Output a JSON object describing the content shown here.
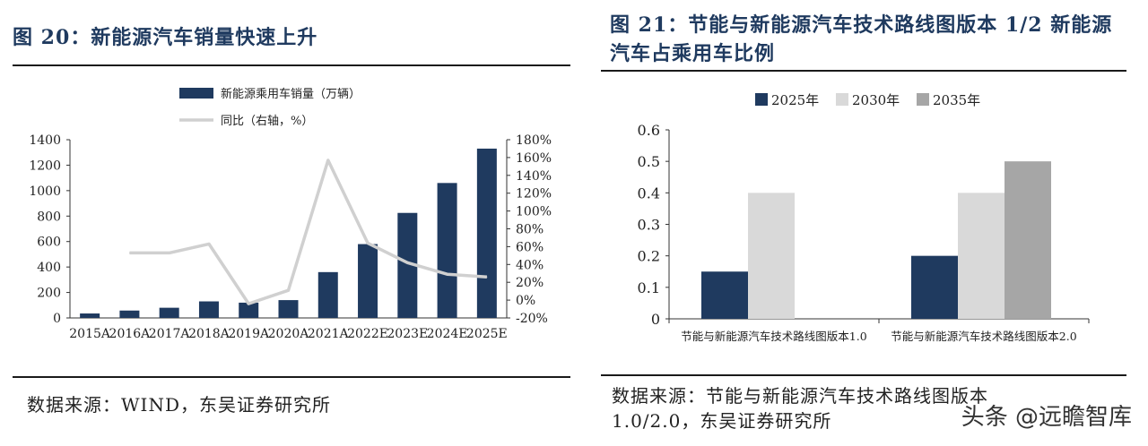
{
  "left": {
    "title": "图 20：新能源汽车销量快速上升",
    "source": "数据来源：WIND，东吴证券研究所"
  },
  "right": {
    "title_line1": "图 21：节能与新能源汽车技术路线图版本 1/2 新能源",
    "title_line2": "汽车占乘用车比例",
    "source_line1": "数据来源：节能与新能源汽车技术路线图版本",
    "source_line2": "1.0/2.0，东吴证券研究所"
  },
  "watermark": "头条 @远瞻智库",
  "colors": {
    "navy": "#1f3a5f",
    "light_gray": "#d9d9d9",
    "mid_gray": "#a6a6a6",
    "line_gray": "#d0d0d0"
  },
  "chart_data": [
    {
      "type": "bar",
      "categories": [
        "2015A",
        "2016A",
        "2017A",
        "2018A",
        "2019A",
        "2020A",
        "2021A",
        "2022E",
        "2023E",
        "2024E",
        "2025E"
      ],
      "series": [
        {
          "name": "新能源乘用车销量（万辆）",
          "type": "bar",
          "axis": "left",
          "values": [
            35,
            58,
            80,
            130,
            120,
            140,
            360,
            580,
            825,
            1060,
            1330
          ]
        },
        {
          "name": "同比（右轴，%）",
          "type": "line",
          "axis": "right",
          "values": [
            null,
            53,
            53,
            63,
            -4,
            11,
            157,
            64,
            42,
            29,
            26
          ]
        }
      ],
      "ylim": [
        0,
        1400
      ],
      "yticks": [
        "0",
        "200",
        "400",
        "600",
        "800",
        "1000",
        "1200",
        "1400"
      ],
      "y2lim": [
        -20,
        180
      ],
      "y2ticks": [
        "-20%",
        "0%",
        "20%",
        "40%",
        "60%",
        "80%",
        "100%",
        "120%",
        "140%",
        "160%",
        "180%"
      ],
      "legend": "top",
      "grid": false
    },
    {
      "type": "bar",
      "categories": [
        "节能与新能源汽车技术路线图版本1.0",
        "节能与新能源汽车技术路线图版本2.0"
      ],
      "series": [
        {
          "name": "2025年",
          "values": [
            0.15,
            0.2
          ]
        },
        {
          "name": "2030年",
          "values": [
            0.4,
            0.4
          ]
        },
        {
          "name": "2035年",
          "values": [
            null,
            0.5
          ]
        }
      ],
      "ylim": [
        0,
        0.6
      ],
      "yticks": [
        "0",
        "0.1",
        "0.2",
        "0.3",
        "0.4",
        "0.5",
        "0.6"
      ],
      "legend": "top",
      "grid": false
    }
  ]
}
